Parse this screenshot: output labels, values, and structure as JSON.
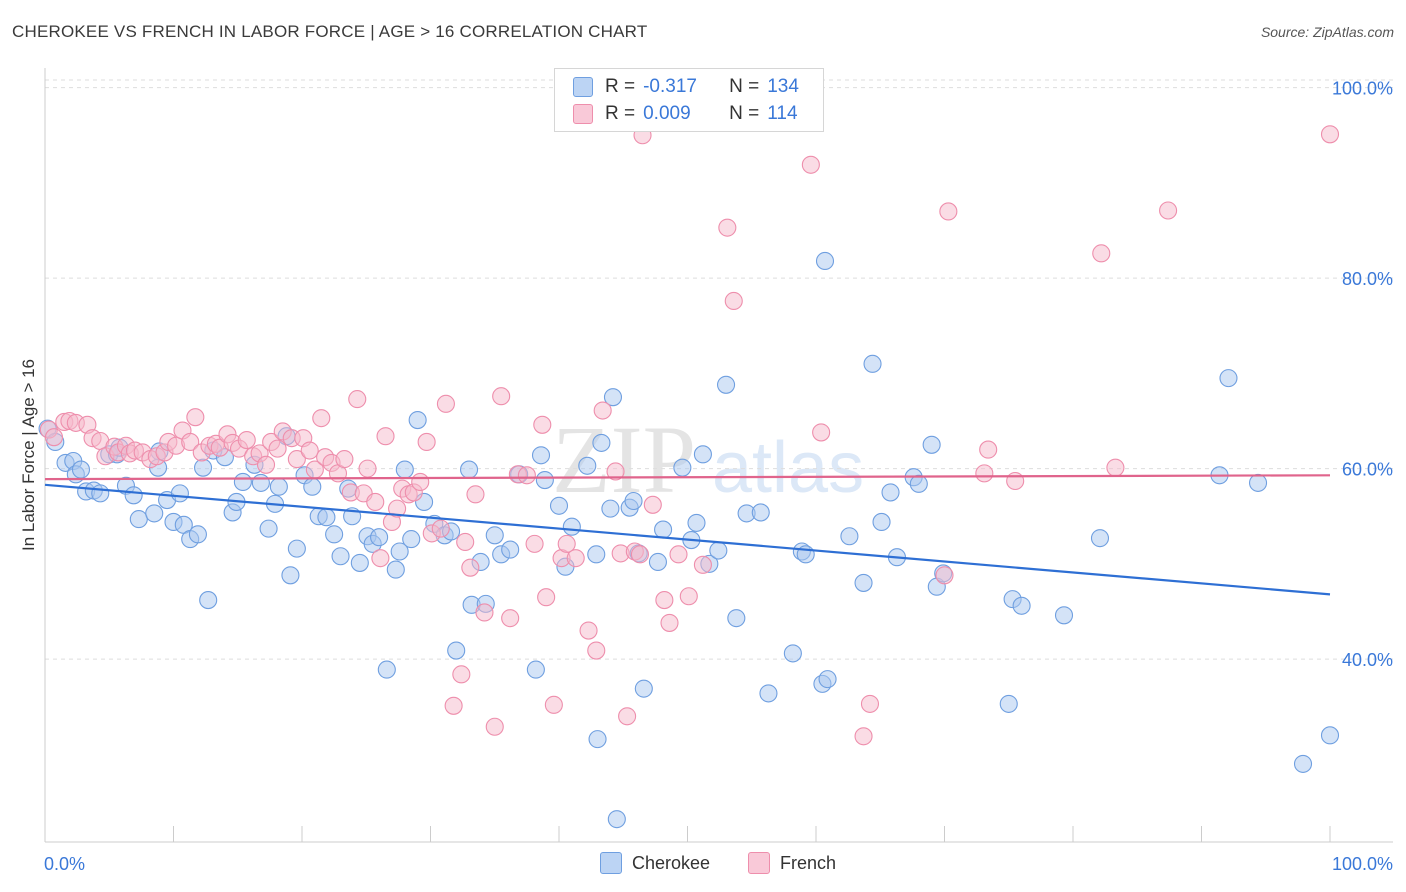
{
  "title": "CHEROKEE VS FRENCH IN LABOR FORCE | AGE > 16 CORRELATION CHART",
  "source_prefix": "Source: ",
  "source_name": "ZipAtlas.com",
  "watermark": {
    "zip": "ZIP",
    "atlas": "atlas"
  },
  "stats": {
    "r_label": "R =",
    "n_label": "N =",
    "rows": [
      {
        "r": "-0.317",
        "n": "134"
      },
      {
        "r": "0.009",
        "n": "114"
      }
    ]
  },
  "colors": {
    "cherokee_fill": "#a9c8f0",
    "cherokee_stroke": "#6f9fe0",
    "cherokee_line": "#2e6fd4",
    "french_fill": "#f6b9cc",
    "french_stroke": "#ee8eac",
    "french_line": "#e0648c",
    "axis_label": "#3a78d8",
    "grid": "#dddddd"
  },
  "chart_data": {
    "type": "scatter",
    "title": "CHEROKEE VS FRENCH IN LABOR FORCE | AGE > 16 CORRELATION CHART",
    "xlabel": "",
    "ylabel": "In Labor Force | Age > 16",
    "xlim": [
      0,
      100
    ],
    "ylim": [
      20.8,
      100.8
    ],
    "x_tick_labels": [
      "0.0%",
      "100.0%"
    ],
    "y_ticks": [
      40,
      60,
      80,
      100
    ],
    "y_tick_labels": [
      "40.0%",
      "60.0%",
      "80.0%",
      "100.0%"
    ],
    "grid": true,
    "legend_position": "bottom-center",
    "series": [
      {
        "name": "Cherokee",
        "trend": {
          "x": [
            0,
            100
          ],
          "y": [
            58.3,
            46.8
          ]
        },
        "points": [
          [
            0.2,
            64.2
          ],
          [
            0.8,
            62.8
          ],
          [
            1.6,
            60.6
          ],
          [
            2.2,
            60.8
          ],
          [
            2.4,
            59.4
          ],
          [
            2.8,
            59.9
          ],
          [
            3.2,
            57.6
          ],
          [
            3.8,
            57.7
          ],
          [
            4.3,
            57.4
          ],
          [
            5.0,
            61.5
          ],
          [
            5.6,
            61.5
          ],
          [
            5.8,
            62.2
          ],
          [
            6.3,
            58.2
          ],
          [
            6.9,
            57.2
          ],
          [
            7.3,
            54.7
          ],
          [
            8.5,
            55.3
          ],
          [
            8.9,
            61.8
          ],
          [
            8.8,
            60.1
          ],
          [
            9.5,
            56.7
          ],
          [
            10.0,
            54.4
          ],
          [
            10.5,
            57.4
          ],
          [
            10.8,
            54.1
          ],
          [
            11.3,
            52.6
          ],
          [
            11.9,
            53.1
          ],
          [
            12.3,
            60.1
          ],
          [
            12.7,
            46.2
          ],
          [
            13.1,
            61.9
          ],
          [
            14.0,
            61.2
          ],
          [
            14.6,
            55.4
          ],
          [
            14.9,
            56.5
          ],
          [
            15.4,
            58.6
          ],
          [
            16.3,
            60.4
          ],
          [
            16.8,
            58.5
          ],
          [
            17.4,
            53.7
          ],
          [
            17.9,
            56.3
          ],
          [
            18.2,
            58.1
          ],
          [
            18.8,
            63.4
          ],
          [
            19.1,
            48.8
          ],
          [
            19.6,
            51.6
          ],
          [
            20.2,
            59.3
          ],
          [
            20.8,
            58.1
          ],
          [
            21.3,
            55.0
          ],
          [
            21.9,
            54.9
          ],
          [
            22.5,
            53.1
          ],
          [
            23.0,
            50.8
          ],
          [
            23.6,
            57.9
          ],
          [
            23.9,
            55.0
          ],
          [
            24.5,
            50.1
          ],
          [
            25.1,
            52.9
          ],
          [
            25.5,
            52.1
          ],
          [
            26.0,
            52.8
          ],
          [
            26.6,
            38.9
          ],
          [
            27.3,
            49.4
          ],
          [
            27.6,
            51.3
          ],
          [
            28.0,
            59.9
          ],
          [
            28.5,
            52.6
          ],
          [
            29.0,
            65.1
          ],
          [
            29.5,
            56.5
          ],
          [
            30.3,
            54.2
          ],
          [
            31.1,
            53.0
          ],
          [
            31.6,
            53.4
          ],
          [
            32.0,
            40.9
          ],
          [
            33.0,
            59.9
          ],
          [
            33.2,
            45.7
          ],
          [
            33.9,
            50.2
          ],
          [
            34.3,
            45.8
          ],
          [
            35.0,
            53.0
          ],
          [
            35.5,
            51.0
          ],
          [
            36.2,
            51.5
          ],
          [
            36.9,
            59.4
          ],
          [
            38.2,
            38.9
          ],
          [
            38.6,
            61.4
          ],
          [
            38.9,
            58.8
          ],
          [
            40.0,
            56.1
          ],
          [
            40.5,
            49.7
          ],
          [
            41.0,
            53.9
          ],
          [
            42.2,
            60.3
          ],
          [
            42.9,
            51.0
          ],
          [
            43.0,
            31.6
          ],
          [
            43.3,
            62.7
          ],
          [
            44.2,
            67.5
          ],
          [
            44.0,
            55.8
          ],
          [
            44.5,
            23.2
          ],
          [
            45.5,
            55.9
          ],
          [
            45.8,
            56.6
          ],
          [
            46.2,
            51.1
          ],
          [
            46.6,
            36.9
          ],
          [
            47.7,
            50.2
          ],
          [
            48.1,
            53.6
          ],
          [
            49.6,
            60.1
          ],
          [
            50.3,
            52.5
          ],
          [
            50.7,
            54.3
          ],
          [
            51.2,
            61.5
          ],
          [
            51.7,
            50.0
          ],
          [
            52.4,
            51.4
          ],
          [
            53.0,
            68.8
          ],
          [
            53.8,
            44.3
          ],
          [
            54.6,
            55.3
          ],
          [
            55.7,
            55.4
          ],
          [
            56.3,
            36.4
          ],
          [
            58.2,
            40.6
          ],
          [
            58.9,
            51.3
          ],
          [
            59.2,
            51.0
          ],
          [
            60.5,
            37.4
          ],
          [
            60.9,
            37.9
          ],
          [
            60.7,
            81.8
          ],
          [
            62.6,
            52.9
          ],
          [
            63.7,
            48.0
          ],
          [
            64.4,
            71.0
          ],
          [
            65.1,
            54.4
          ],
          [
            65.8,
            57.5
          ],
          [
            66.3,
            50.7
          ],
          [
            67.6,
            59.1
          ],
          [
            68.0,
            58.4
          ],
          [
            69.0,
            62.5
          ],
          [
            69.4,
            47.6
          ],
          [
            69.9,
            49.0
          ],
          [
            75.0,
            35.3
          ],
          [
            75.3,
            46.3
          ],
          [
            76.0,
            45.6
          ],
          [
            79.3,
            44.6
          ],
          [
            82.1,
            52.7
          ],
          [
            91.4,
            59.3
          ],
          [
            92.1,
            69.5
          ],
          [
            94.4,
            58.5
          ],
          [
            97.9,
            29.0
          ],
          [
            100.0,
            32.0
          ]
        ]
      },
      {
        "name": "French",
        "trend": {
          "x": [
            0,
            100
          ],
          "y": [
            58.9,
            59.3
          ]
        },
        "points": [
          [
            0.3,
            64.1
          ],
          [
            0.7,
            63.3
          ],
          [
            1.5,
            64.9
          ],
          [
            1.9,
            65.0
          ],
          [
            2.4,
            64.8
          ],
          [
            3.3,
            64.6
          ],
          [
            3.7,
            63.2
          ],
          [
            4.3,
            62.9
          ],
          [
            4.7,
            61.3
          ],
          [
            5.4,
            62.3
          ],
          [
            5.7,
            61.7
          ],
          [
            6.3,
            62.4
          ],
          [
            6.6,
            61.6
          ],
          [
            7.0,
            61.9
          ],
          [
            7.6,
            61.7
          ],
          [
            8.2,
            61.0
          ],
          [
            8.7,
            61.3
          ],
          [
            9.3,
            61.7
          ],
          [
            9.6,
            62.8
          ],
          [
            10.2,
            62.4
          ],
          [
            10.7,
            64.0
          ],
          [
            11.3,
            62.8
          ],
          [
            11.7,
            65.4
          ],
          [
            12.2,
            61.7
          ],
          [
            12.8,
            62.4
          ],
          [
            13.3,
            62.6
          ],
          [
            13.6,
            62.2
          ],
          [
            14.2,
            63.6
          ],
          [
            14.6,
            62.7
          ],
          [
            15.1,
            62.1
          ],
          [
            15.7,
            63.0
          ],
          [
            16.2,
            61.3
          ],
          [
            16.7,
            61.6
          ],
          [
            17.2,
            60.4
          ],
          [
            17.6,
            62.8
          ],
          [
            18.1,
            62.1
          ],
          [
            18.5,
            63.9
          ],
          [
            19.2,
            63.2
          ],
          [
            19.6,
            61.0
          ],
          [
            20.1,
            63.2
          ],
          [
            20.6,
            61.9
          ],
          [
            21.0,
            59.9
          ],
          [
            21.5,
            65.3
          ],
          [
            21.8,
            61.2
          ],
          [
            22.3,
            60.6
          ],
          [
            22.8,
            59.5
          ],
          [
            23.3,
            61.0
          ],
          [
            23.8,
            57.5
          ],
          [
            24.3,
            67.3
          ],
          [
            24.8,
            57.4
          ],
          [
            25.1,
            60.0
          ],
          [
            25.7,
            56.5
          ],
          [
            26.1,
            50.6
          ],
          [
            26.5,
            63.4
          ],
          [
            27.0,
            54.4
          ],
          [
            27.4,
            55.8
          ],
          [
            27.8,
            57.9
          ],
          [
            28.3,
            57.3
          ],
          [
            28.7,
            57.5
          ],
          [
            29.2,
            58.6
          ],
          [
            29.7,
            62.8
          ],
          [
            30.1,
            53.2
          ],
          [
            30.8,
            53.7
          ],
          [
            31.2,
            66.8
          ],
          [
            31.8,
            35.1
          ],
          [
            32.4,
            38.4
          ],
          [
            32.7,
            52.3
          ],
          [
            33.1,
            49.6
          ],
          [
            33.5,
            57.3
          ],
          [
            34.2,
            44.9
          ],
          [
            35.0,
            32.9
          ],
          [
            35.5,
            67.6
          ],
          [
            36.2,
            44.3
          ],
          [
            36.8,
            59.4
          ],
          [
            37.5,
            59.3
          ],
          [
            38.1,
            52.1
          ],
          [
            38.7,
            64.6
          ],
          [
            39.0,
            46.5
          ],
          [
            39.6,
            35.2
          ],
          [
            40.2,
            50.6
          ],
          [
            40.6,
            52.1
          ],
          [
            41.3,
            50.6
          ],
          [
            42.3,
            43.0
          ],
          [
            42.9,
            40.9
          ],
          [
            43.4,
            66.1
          ],
          [
            44.4,
            59.7
          ],
          [
            44.8,
            51.1
          ],
          [
            45.3,
            34.0
          ],
          [
            45.9,
            51.3
          ],
          [
            46.3,
            51.0
          ],
          [
            46.5,
            95.0
          ],
          [
            47.3,
            56.2
          ],
          [
            48.2,
            46.2
          ],
          [
            48.6,
            43.8
          ],
          [
            49.3,
            51.0
          ],
          [
            50.1,
            46.6
          ],
          [
            51.2,
            49.9
          ],
          [
            53.1,
            85.3
          ],
          [
            53.6,
            77.6
          ],
          [
            59.6,
            91.9
          ],
          [
            60.4,
            63.8
          ],
          [
            63.7,
            31.9
          ],
          [
            64.2,
            35.3
          ],
          [
            70.0,
            48.8
          ],
          [
            70.3,
            87.0
          ],
          [
            73.1,
            59.5
          ],
          [
            73.4,
            62.0
          ],
          [
            75.5,
            58.7
          ],
          [
            82.2,
            82.6
          ],
          [
            83.3,
            60.1
          ],
          [
            87.4,
            87.1
          ],
          [
            100.0,
            95.1
          ]
        ]
      }
    ]
  },
  "legend": [
    "Cherokee",
    "French"
  ]
}
